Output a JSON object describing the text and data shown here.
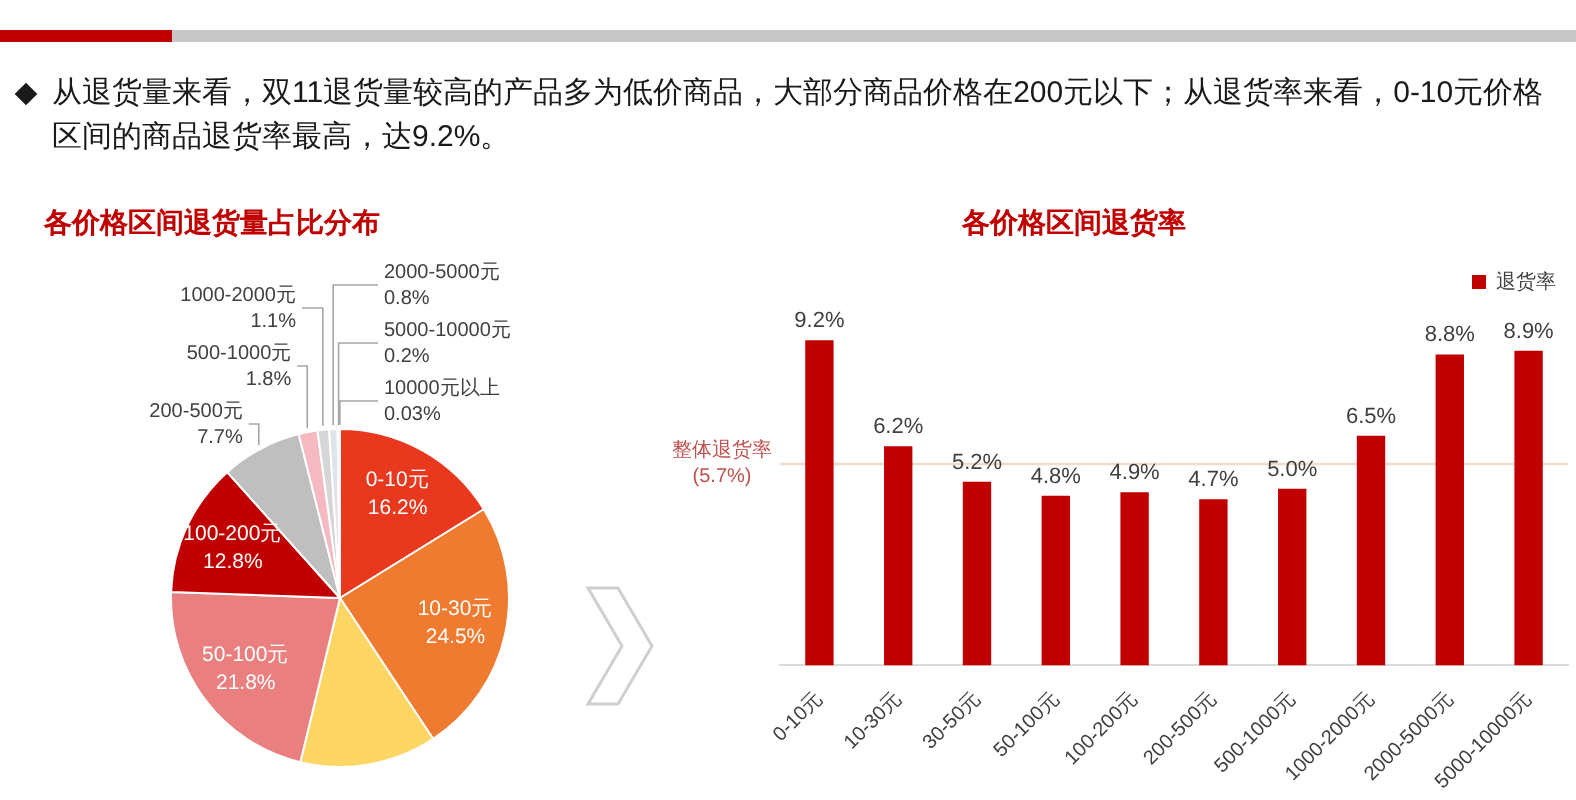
{
  "chart_data": [
    {
      "type": "other",
      "annotations": [
        "从退货量来看，双11退货量较高的产品多为低价商品，大部分商品价格在200元以下；从退货率来看，0-10元价格区间的商品退货率最高，达9.2%。"
      ]
    },
    {
      "type": "pie",
      "title": "各价格区间退货量占比分布",
      "categories": [
        "0-10元",
        "10-30元",
        null,
        "50-100元",
        "100-200元",
        "200-500元",
        "500-1000元",
        "1000-2000元",
        "2000-5000元",
        "5000-10000元",
        "10000元以上"
      ],
      "values": [
        16.2,
        24.5,
        13.07,
        21.8,
        12.8,
        7.7,
        1.8,
        1.1,
        0.8,
        0.2,
        0.03
      ],
      "colors": [
        "#e8381e",
        "#ee7b30",
        "#fdd663",
        "#e97f7f",
        "#c00000",
        "#bfbfbf",
        "#f4b9c1",
        "#d6d6d6",
        "#dfe4ea",
        "#3f3f3f",
        "#1f1f1f"
      ],
      "value_labels": [
        "16.2%",
        "24.5%",
        null,
        "21.8%",
        "12.8%",
        "7.7%",
        "1.8%",
        "1.1%",
        "0.8%",
        "0.2%",
        "0.03%"
      ]
    },
    {
      "type": "bar",
      "title": "各价格区间退货率",
      "categories": [
        "0-10元",
        "10-30元",
        "30-50元",
        "50-100元",
        "100-200元",
        "200-500元",
        "500-1000元",
        "1000-2000元",
        "2000-5000元",
        "5000-10000元"
      ],
      "series": [
        {
          "name": "退货率",
          "color": "#c00000",
          "values": [
            9.2,
            6.2,
            5.2,
            4.8,
            4.9,
            4.7,
            5.0,
            6.5,
            8.8,
            8.9
          ],
          "value_labels": [
            "9.2%",
            "6.2%",
            "5.2%",
            "4.8%",
            "4.9%",
            "4.7%",
            "5.0%",
            "6.5%",
            "8.8%",
            "8.9%"
          ]
        }
      ],
      "legend": "top right",
      "tick_labels": "x",
      "ref_lines": [
        {
          "axis": "y",
          "value": 5.7,
          "label": "整体退货率(5.7%)",
          "color": "#f0dccb"
        }
      ]
    }
  ]
}
